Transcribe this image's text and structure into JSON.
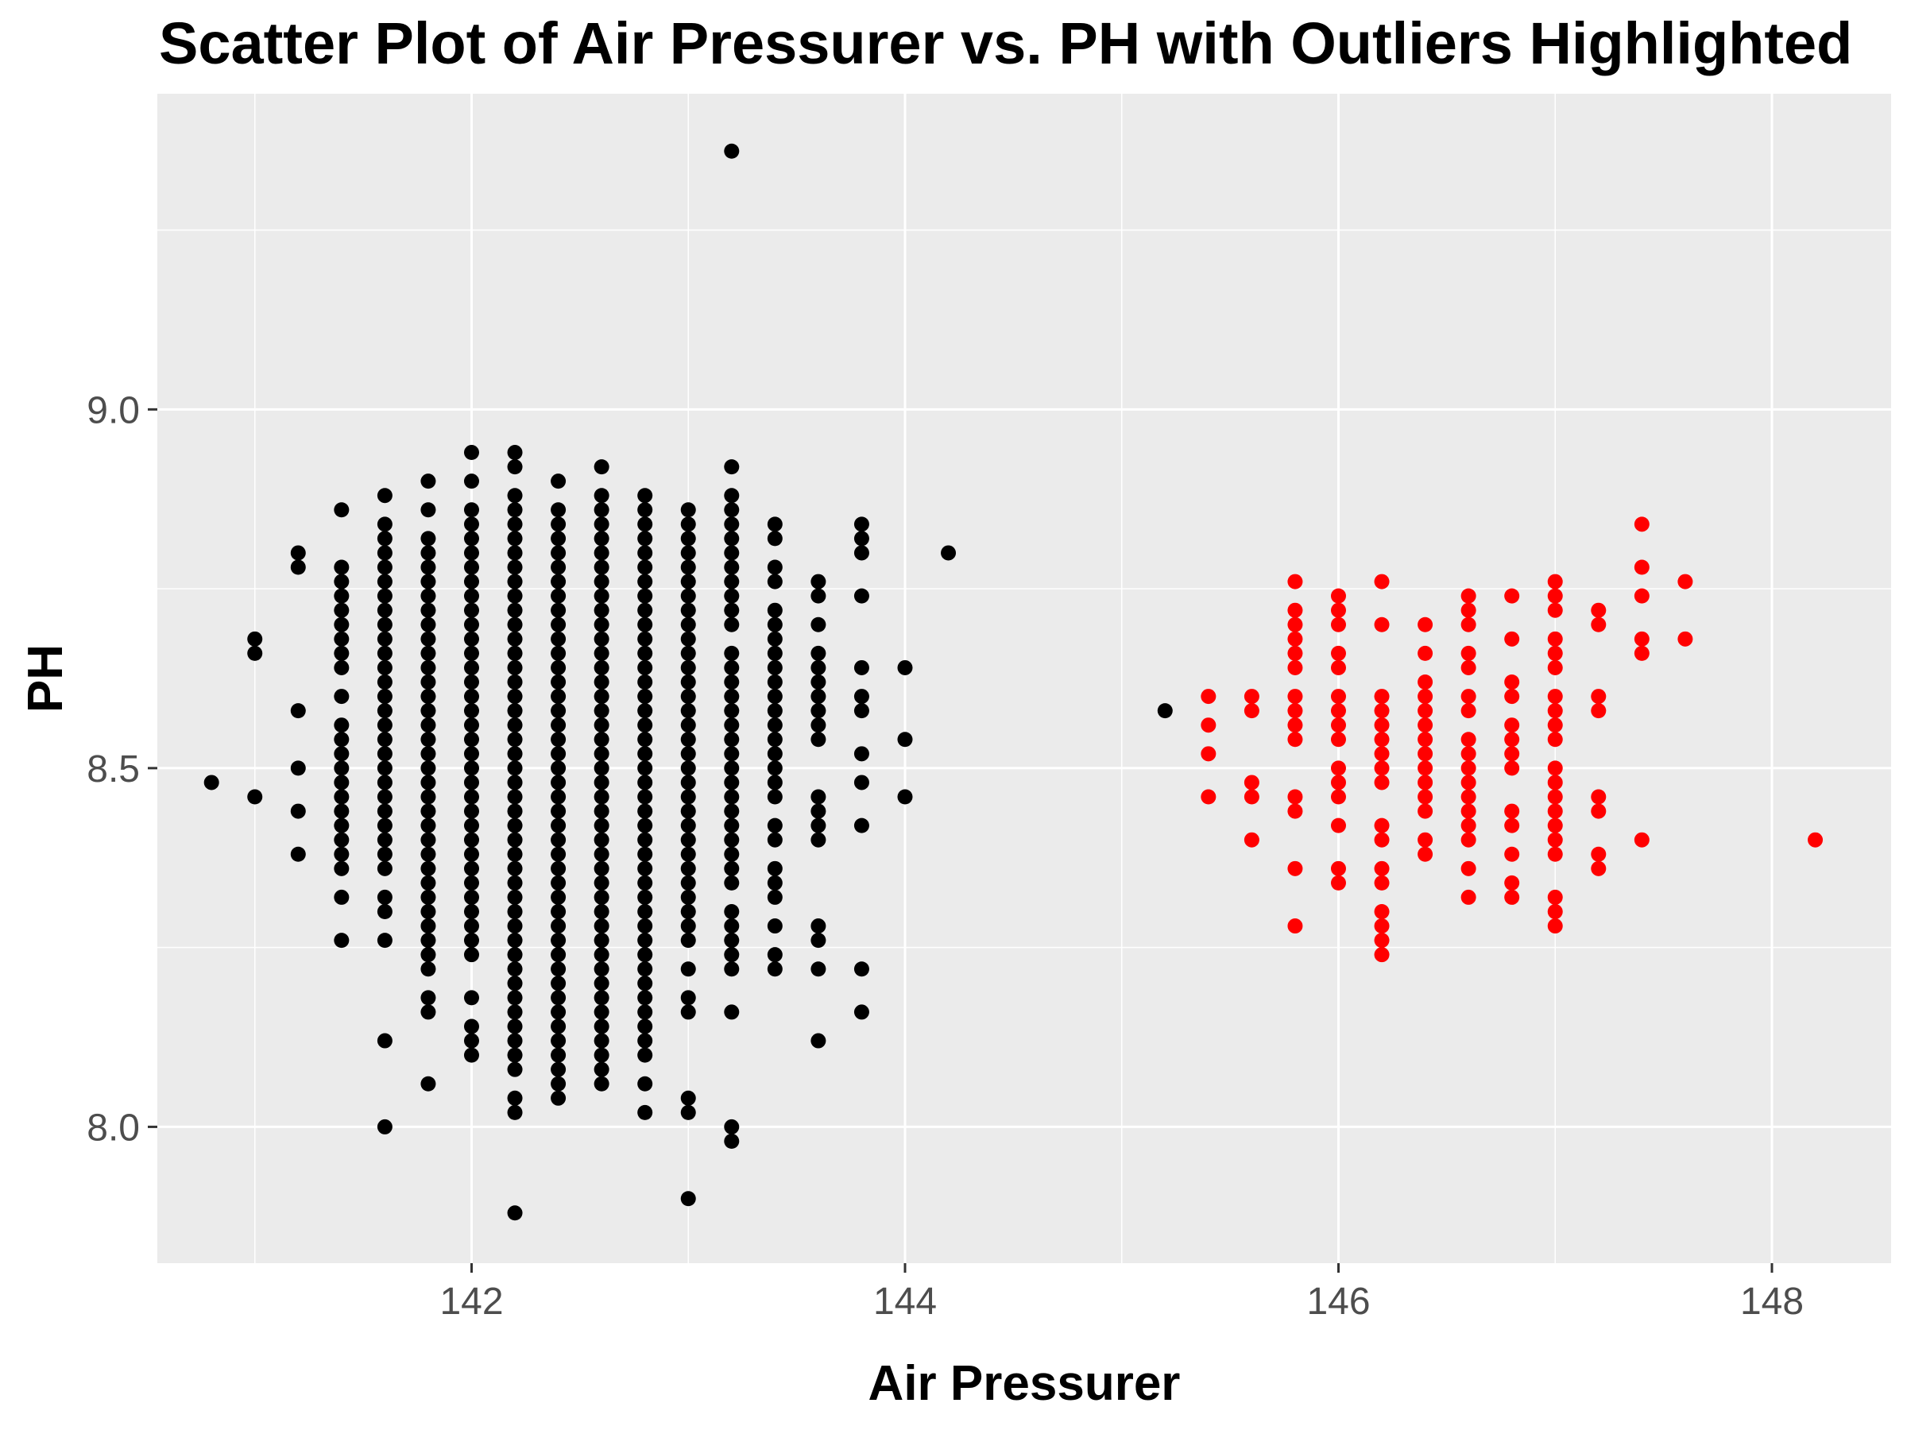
{
  "chart_data": {
    "type": "scatter",
    "title": "Scatter Plot of Air Pressurer vs. PH with Outliers Highlighted",
    "xlabel": "Air Pressurer",
    "ylabel": "PH",
    "xlim": [
      140.55,
      148.55
    ],
    "ylim": [
      7.81,
      9.44
    ],
    "x_ticks": [
      142,
      144,
      146,
      148
    ],
    "x_tick_labels": [
      "142",
      "144",
      "146",
      "148"
    ],
    "y_ticks": [
      8.0,
      8.5,
      9.0
    ],
    "y_tick_labels": [
      "8.0",
      "8.5",
      "9.0"
    ],
    "grid": true,
    "legend": "none",
    "colors": {
      "panel_background": "#ebebeb",
      "grid": "#ffffff",
      "normal_points": "#000000",
      "outlier_points": "#ff0000"
    },
    "series": [
      {
        "color": "#000000",
        "columns": [
          {
            "x": 140.8,
            "y": [
              8.48
            ]
          },
          {
            "x": 141.0,
            "y": [
              8.46,
              8.66,
              8.68
            ]
          },
          {
            "x": 141.2,
            "y": [
              8.38,
              8.44,
              8.5,
              8.58,
              8.78,
              8.8
            ]
          },
          {
            "x": 141.4,
            "y": [
              8.26,
              8.32,
              8.36,
              8.38,
              8.4,
              8.42,
              8.44,
              8.46,
              8.48,
              8.5,
              8.52,
              8.54,
              8.56,
              8.6,
              8.64,
              8.66,
              8.68,
              8.7,
              8.72,
              8.74,
              8.76,
              8.78,
              8.86
            ]
          },
          {
            "x": 141.6,
            "y": [
              8.0,
              8.12,
              8.26,
              8.3,
              8.32,
              8.36,
              8.38,
              8.4,
              8.42,
              8.44,
              8.46,
              8.48,
              8.5,
              8.52,
              8.54,
              8.56,
              8.58,
              8.6,
              8.62,
              8.64,
              8.66,
              8.68,
              8.7,
              8.72,
              8.74,
              8.76,
              8.78,
              8.8,
              8.82,
              8.84,
              8.88
            ]
          },
          {
            "x": 141.8,
            "y": [
              8.06,
              8.16,
              8.18,
              8.22,
              8.24,
              8.26,
              8.28,
              8.3,
              8.32,
              8.34,
              8.36,
              8.38,
              8.4,
              8.42,
              8.44,
              8.46,
              8.48,
              8.5,
              8.52,
              8.54,
              8.56,
              8.58,
              8.6,
              8.62,
              8.64,
              8.66,
              8.68,
              8.7,
              8.72,
              8.74,
              8.76,
              8.78,
              8.8,
              8.82,
              8.86,
              8.9
            ]
          },
          {
            "x": 142.0,
            "y": [
              8.1,
              8.12,
              8.14,
              8.18,
              8.24,
              8.26,
              8.28,
              8.3,
              8.32,
              8.34,
              8.36,
              8.38,
              8.4,
              8.42,
              8.44,
              8.46,
              8.48,
              8.5,
              8.52,
              8.54,
              8.56,
              8.58,
              8.6,
              8.62,
              8.64,
              8.66,
              8.68,
              8.7,
              8.72,
              8.74,
              8.76,
              8.78,
              8.8,
              8.82,
              8.84,
              8.86,
              8.9,
              8.94
            ]
          },
          {
            "x": 142.2,
            "y": [
              7.88,
              8.02,
              8.04,
              8.08,
              8.1,
              8.12,
              8.14,
              8.16,
              8.18,
              8.2,
              8.22,
              8.24,
              8.26,
              8.28,
              8.3,
              8.32,
              8.34,
              8.36,
              8.38,
              8.4,
              8.42,
              8.44,
              8.46,
              8.48,
              8.5,
              8.52,
              8.54,
              8.56,
              8.58,
              8.6,
              8.62,
              8.64,
              8.66,
              8.68,
              8.7,
              8.72,
              8.74,
              8.76,
              8.78,
              8.8,
              8.82,
              8.84,
              8.86,
              8.88,
              8.92,
              8.94
            ]
          },
          {
            "x": 142.4,
            "y": [
              8.04,
              8.06,
              8.08,
              8.1,
              8.12,
              8.14,
              8.16,
              8.18,
              8.2,
              8.22,
              8.24,
              8.26,
              8.28,
              8.3,
              8.32,
              8.34,
              8.36,
              8.38,
              8.4,
              8.42,
              8.44,
              8.46,
              8.48,
              8.5,
              8.52,
              8.54,
              8.56,
              8.58,
              8.6,
              8.62,
              8.64,
              8.66,
              8.68,
              8.7,
              8.72,
              8.74,
              8.76,
              8.78,
              8.8,
              8.82,
              8.84,
              8.86,
              8.9
            ]
          },
          {
            "x": 142.6,
            "y": [
              8.06,
              8.08,
              8.1,
              8.12,
              8.14,
              8.16,
              8.18,
              8.2,
              8.22,
              8.24,
              8.26,
              8.28,
              8.3,
              8.32,
              8.34,
              8.36,
              8.38,
              8.4,
              8.42,
              8.44,
              8.46,
              8.48,
              8.5,
              8.52,
              8.54,
              8.56,
              8.58,
              8.6,
              8.62,
              8.64,
              8.66,
              8.68,
              8.7,
              8.72,
              8.74,
              8.76,
              8.78,
              8.8,
              8.82,
              8.84,
              8.86,
              8.88,
              8.92
            ]
          },
          {
            "x": 142.8,
            "y": [
              8.02,
              8.06,
              8.1,
              8.12,
              8.14,
              8.16,
              8.18,
              8.2,
              8.22,
              8.24,
              8.26,
              8.28,
              8.3,
              8.32,
              8.34,
              8.36,
              8.38,
              8.4,
              8.42,
              8.44,
              8.46,
              8.48,
              8.5,
              8.52,
              8.54,
              8.56,
              8.58,
              8.6,
              8.62,
              8.64,
              8.66,
              8.68,
              8.7,
              8.72,
              8.74,
              8.76,
              8.78,
              8.8,
              8.82,
              8.84,
              8.86,
              8.88
            ]
          },
          {
            "x": 143.0,
            "y": [
              7.9,
              8.02,
              8.04,
              8.16,
              8.18,
              8.22,
              8.26,
              8.28,
              8.3,
              8.32,
              8.34,
              8.36,
              8.38,
              8.4,
              8.42,
              8.44,
              8.46,
              8.48,
              8.5,
              8.52,
              8.54,
              8.56,
              8.58,
              8.6,
              8.62,
              8.64,
              8.66,
              8.68,
              8.7,
              8.72,
              8.74,
              8.76,
              8.78,
              8.8,
              8.82,
              8.84,
              8.86
            ]
          },
          {
            "x": 143.2,
            "y": [
              7.98,
              8.0,
              8.16,
              8.22,
              8.24,
              8.26,
              8.28,
              8.3,
              8.34,
              8.36,
              8.38,
              8.4,
              8.42,
              8.44,
              8.46,
              8.48,
              8.5,
              8.52,
              8.54,
              8.56,
              8.58,
              8.6,
              8.62,
              8.64,
              8.66,
              8.7,
              8.72,
              8.74,
              8.76,
              8.78,
              8.8,
              8.82,
              8.84,
              8.86,
              8.88,
              8.92,
              9.36
            ]
          },
          {
            "x": 143.4,
            "y": [
              8.22,
              8.24,
              8.28,
              8.32,
              8.34,
              8.36,
              8.4,
              8.42,
              8.46,
              8.48,
              8.5,
              8.52,
              8.54,
              8.56,
              8.58,
              8.6,
              8.62,
              8.64,
              8.66,
              8.68,
              8.7,
              8.72,
              8.76,
              8.78,
              8.82,
              8.84
            ]
          },
          {
            "x": 143.6,
            "y": [
              8.12,
              8.22,
              8.26,
              8.28,
              8.4,
              8.42,
              8.44,
              8.46,
              8.54,
              8.56,
              8.58,
              8.6,
              8.62,
              8.64,
              8.66,
              8.7,
              8.74,
              8.76
            ]
          },
          {
            "x": 143.8,
            "y": [
              8.16,
              8.22,
              8.42,
              8.48,
              8.52,
              8.58,
              8.6,
              8.64,
              8.74,
              8.8,
              8.82,
              8.84
            ]
          },
          {
            "x": 144.0,
            "y": [
              8.46,
              8.54,
              8.64
            ]
          },
          {
            "x": 144.2,
            "y": [
              8.8
            ]
          },
          {
            "x": 145.2,
            "y": [
              8.58
            ]
          }
        ]
      },
      {
        "color": "#ff0000",
        "columns": [
          {
            "x": 145.4,
            "y": [
              8.46,
              8.52,
              8.56,
              8.6
            ]
          },
          {
            "x": 145.6,
            "y": [
              8.4,
              8.46,
              8.48,
              8.58,
              8.6
            ]
          },
          {
            "x": 145.8,
            "y": [
              8.28,
              8.36,
              8.44,
              8.46,
              8.54,
              8.56,
              8.58,
              8.6,
              8.64,
              8.66,
              8.68,
              8.7,
              8.72,
              8.76
            ]
          },
          {
            "x": 146.0,
            "y": [
              8.34,
              8.36,
              8.42,
              8.46,
              8.48,
              8.5,
              8.54,
              8.56,
              8.58,
              8.6,
              8.64,
              8.66,
              8.7,
              8.72,
              8.74
            ]
          },
          {
            "x": 146.2,
            "y": [
              8.24,
              8.26,
              8.28,
              8.3,
              8.34,
              8.36,
              8.4,
              8.42,
              8.48,
              8.5,
              8.52,
              8.54,
              8.56,
              8.58,
              8.6,
              8.7,
              8.76
            ]
          },
          {
            "x": 146.4,
            "y": [
              8.38,
              8.4,
              8.44,
              8.46,
              8.48,
              8.5,
              8.52,
              8.54,
              8.56,
              8.58,
              8.6,
              8.62,
              8.66,
              8.7
            ]
          },
          {
            "x": 146.6,
            "y": [
              8.32,
              8.36,
              8.4,
              8.42,
              8.44,
              8.46,
              8.48,
              8.5,
              8.52,
              8.54,
              8.58,
              8.6,
              8.64,
              8.66,
              8.7,
              8.72,
              8.74
            ]
          },
          {
            "x": 146.8,
            "y": [
              8.32,
              8.34,
              8.38,
              8.42,
              8.44,
              8.5,
              8.52,
              8.54,
              8.56,
              8.6,
              8.62,
              8.68,
              8.74
            ]
          },
          {
            "x": 147.0,
            "y": [
              8.28,
              8.3,
              8.32,
              8.38,
              8.4,
              8.42,
              8.44,
              8.46,
              8.48,
              8.5,
              8.54,
              8.56,
              8.58,
              8.6,
              8.64,
              8.66,
              8.68,
              8.72,
              8.74,
              8.76
            ]
          },
          {
            "x": 147.2,
            "y": [
              8.36,
              8.38,
              8.44,
              8.46,
              8.58,
              8.6,
              8.7,
              8.72
            ]
          },
          {
            "x": 147.4,
            "y": [
              8.4,
              8.66,
              8.68,
              8.74,
              8.78,
              8.84
            ]
          },
          {
            "x": 147.6,
            "y": [
              8.68,
              8.76
            ]
          },
          {
            "x": 148.2,
            "y": [
              8.4
            ]
          }
        ]
      }
    ]
  }
}
